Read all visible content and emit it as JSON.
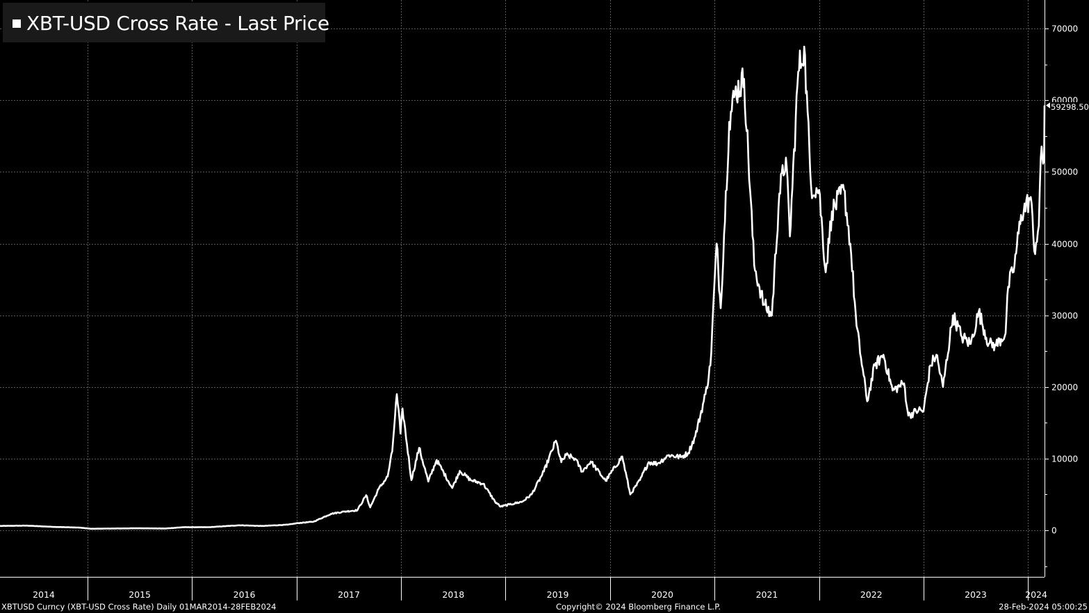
{
  "legend": {
    "label": "XBT-USD Cross Rate - Last Price",
    "color": "#ffffff"
  },
  "footer": {
    "left": "XBTUSD Curncy (XBT-USD Cross Rate)  Daily 01MAR2014-28FEB2024",
    "center": "Copyright© 2024 Bloomberg Finance L.P.",
    "right": "28-Feb-2024 05:00:25"
  },
  "chart_data": {
    "type": "line",
    "title": "",
    "xlabel": "",
    "ylabel": "",
    "ylim": [
      -6500,
      74000
    ],
    "xlim": [
      "2014-03-01",
      "2024-02-28"
    ],
    "grid": true,
    "yticks": [
      0,
      10000,
      20000,
      30000,
      40000,
      50000,
      60000,
      70000
    ],
    "ytick_labels": [
      "0",
      "10000",
      "20000",
      "30000",
      "40000",
      "50000",
      "60000",
      "70000"
    ],
    "xtick_labels": [
      "2014",
      "2015",
      "2016",
      "2017",
      "2018",
      "2019",
      "2020",
      "2021",
      "2022",
      "2023",
      "2024"
    ],
    "last_value": 59298.5,
    "last_value_label": "59298.50",
    "series": [
      {
        "color": "#ffffff",
        "x": [
          "2014-03-01",
          "2014-06-01",
          "2014-09-01",
          "2014-12-01",
          "2015-01-15",
          "2015-04-01",
          "2015-07-01",
          "2015-10-01",
          "2015-12-01",
          "2016-03-01",
          "2016-06-15",
          "2016-09-01",
          "2016-12-01",
          "2017-01-05",
          "2017-03-01",
          "2017-05-01",
          "2017-06-15",
          "2017-08-01",
          "2017-09-01",
          "2017-09-15",
          "2017-10-15",
          "2017-11-15",
          "2017-12-01",
          "2017-12-17",
          "2017-12-30",
          "2018-01-06",
          "2018-02-06",
          "2018-03-05",
          "2018-04-06",
          "2018-05-05",
          "2018-06-29",
          "2018-07-25",
          "2018-09-01",
          "2018-10-15",
          "2018-11-25",
          "2018-12-15",
          "2019-01-15",
          "2019-03-01",
          "2019-04-02",
          "2019-05-15",
          "2019-06-26",
          "2019-07-15",
          "2019-08-01",
          "2019-09-01",
          "2019-09-26",
          "2019-10-26",
          "2019-12-17",
          "2020-02-13",
          "2020-03-12",
          "2020-04-15",
          "2020-05-15",
          "2020-06-15",
          "2020-07-25",
          "2020-09-05",
          "2020-10-01",
          "2020-10-25",
          "2020-11-30",
          "2020-12-17",
          "2021-01-08",
          "2021-01-22",
          "2021-02-21",
          "2021-03-13",
          "2021-04-14",
          "2021-05-19",
          "2021-06-22",
          "2021-07-20",
          "2021-08-15",
          "2021-09-07",
          "2021-09-21",
          "2021-10-20",
          "2021-11-10",
          "2021-12-04",
          "2022-01-01",
          "2022-01-24",
          "2022-02-15",
          "2022-03-29",
          "2022-04-20",
          "2022-05-12",
          "2022-06-18",
          "2022-07-15",
          "2022-08-14",
          "2022-09-15",
          "2022-10-25",
          "2022-11-09",
          "2022-12-15",
          "2023-01-01",
          "2023-01-25",
          "2023-02-15",
          "2023-03-10",
          "2023-04-14",
          "2023-05-15",
          "2023-06-15",
          "2023-07-13",
          "2023-08-17",
          "2023-09-11",
          "2023-10-15",
          "2023-10-24",
          "2023-11-15",
          "2023-12-08",
          "2024-01-11",
          "2024-01-23",
          "2024-02-08",
          "2024-02-15",
          "2024-02-26",
          "2024-02-28"
        ],
        "y": [
          600,
          650,
          480,
          380,
          210,
          250,
          280,
          250,
          430,
          430,
          700,
          600,
          780,
          1000,
          1200,
          2300,
          2600,
          2800,
          4900,
          3200,
          5800,
          7500,
          11000,
          19000,
          13500,
          17000,
          7000,
          11500,
          6800,
          9800,
          5900,
          8300,
          7000,
          6500,
          4000,
          3300,
          3600,
          4000,
          5000,
          8200,
          12500,
          9500,
          10500,
          10000,
          8200,
          9600,
          6900,
          10300,
          5000,
          7000,
          9500,
          9300,
          10500,
          10200,
          10800,
          13100,
          19000,
          23000,
          40000,
          31000,
          57000,
          61000,
          63000,
          37000,
          31500,
          30000,
          47000,
          52000,
          41000,
          64000,
          67500,
          48000,
          47500,
          36000,
          44500,
          47500,
          40000,
          28500,
          18000,
          23000,
          24500,
          19500,
          20500,
          16000,
          16800,
          16600,
          23000,
          24500,
          20000,
          30000,
          27000,
          26000,
          30500,
          26000,
          25800,
          27500,
          34000,
          37000,
          44000,
          46500,
          39000,
          42500,
          52000,
          51500,
          59298.5
        ]
      }
    ]
  }
}
